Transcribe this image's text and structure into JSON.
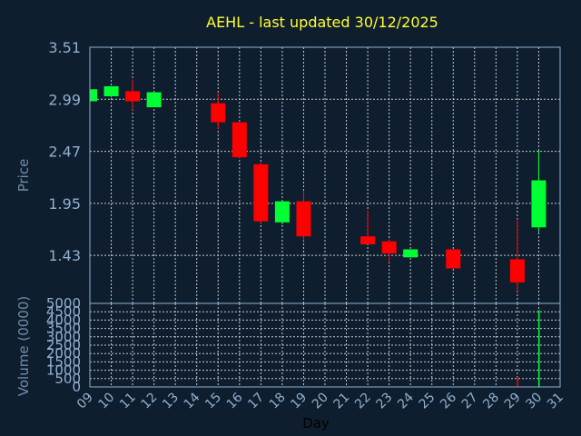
{
  "chart_data": {
    "type": "candlestick",
    "title": "AEHL - last updated 30/12/2025",
    "xlabel": "Day",
    "ylabel": "Price",
    "volume_label": "Volume (0000)",
    "colors": {
      "background": "#0f1e2e",
      "up": "#00ff33",
      "down": "#ff0000",
      "grid": "#c8c8c8",
      "frame": "#8fb0d0",
      "title": "#ffff33"
    },
    "grid": true,
    "day_ticks": [
      "09",
      "10",
      "11",
      "12",
      "13",
      "14",
      "15",
      "16",
      "17",
      "18",
      "19",
      "20",
      "21",
      "22",
      "23",
      "24",
      "25",
      "26",
      "27",
      "28",
      "29",
      "30",
      "31"
    ],
    "price_ticks": [
      "3.51",
      "2.99",
      "2.47",
      "1.95",
      "1.43"
    ],
    "price_tick_values": [
      3.51,
      2.99,
      2.47,
      1.95,
      1.43
    ],
    "price_range": [
      0.95,
      3.51
    ],
    "volume_ticks": [
      "5000",
      "4500",
      "4000",
      "3500",
      "3000",
      "2500",
      "2000",
      "1500",
      "1000",
      "500",
      "0"
    ],
    "volume_tick_values": [
      5000,
      4500,
      4000,
      3500,
      3000,
      2500,
      2000,
      1500,
      1000,
      500,
      0
    ],
    "volume_range": [
      0,
      5000
    ],
    "candles": [
      {
        "day": 9,
        "open": 2.97,
        "high": 3.09,
        "low": 2.97,
        "close": 3.09
      },
      {
        "day": 10,
        "open": 3.02,
        "high": 3.12,
        "low": 3.01,
        "close": 3.12
      },
      {
        "day": 11,
        "open": 3.07,
        "high": 3.19,
        "low": 2.88,
        "close": 2.97
      },
      {
        "day": 12,
        "open": 2.91,
        "high": 3.06,
        "low": 2.91,
        "close": 3.06
      },
      {
        "day": 15,
        "open": 2.95,
        "high": 3.05,
        "low": 2.69,
        "close": 2.76
      },
      {
        "day": 16,
        "open": 2.76,
        "high": 2.77,
        "low": 2.4,
        "close": 2.41
      },
      {
        "day": 17,
        "open": 2.34,
        "high": 2.36,
        "low": 1.74,
        "close": 1.77
      },
      {
        "day": 18,
        "open": 1.76,
        "high": 1.97,
        "low": 1.74,
        "close": 1.97
      },
      {
        "day": 19,
        "open": 1.97,
        "high": 2.08,
        "low": 1.58,
        "close": 1.62
      },
      {
        "day": 22,
        "open": 1.62,
        "high": 1.88,
        "low": 1.54,
        "close": 1.54
      },
      {
        "day": 23,
        "open": 1.57,
        "high": 1.59,
        "low": 1.36,
        "close": 1.45
      },
      {
        "day": 24,
        "open": 1.41,
        "high": 1.49,
        "low": 1.41,
        "close": 1.49
      },
      {
        "day": 26,
        "open": 1.49,
        "high": 1.49,
        "low": 1.3,
        "close": 1.3
      },
      {
        "day": 29,
        "open": 1.39,
        "high": 1.79,
        "low": 1.07,
        "close": 1.16
      },
      {
        "day": 30,
        "open": 1.71,
        "high": 2.48,
        "low": 1.66,
        "close": 2.18
      }
    ],
    "volume": [
      {
        "day": 29,
        "value": 600
      },
      {
        "day": 30,
        "value": 4600
      }
    ]
  }
}
